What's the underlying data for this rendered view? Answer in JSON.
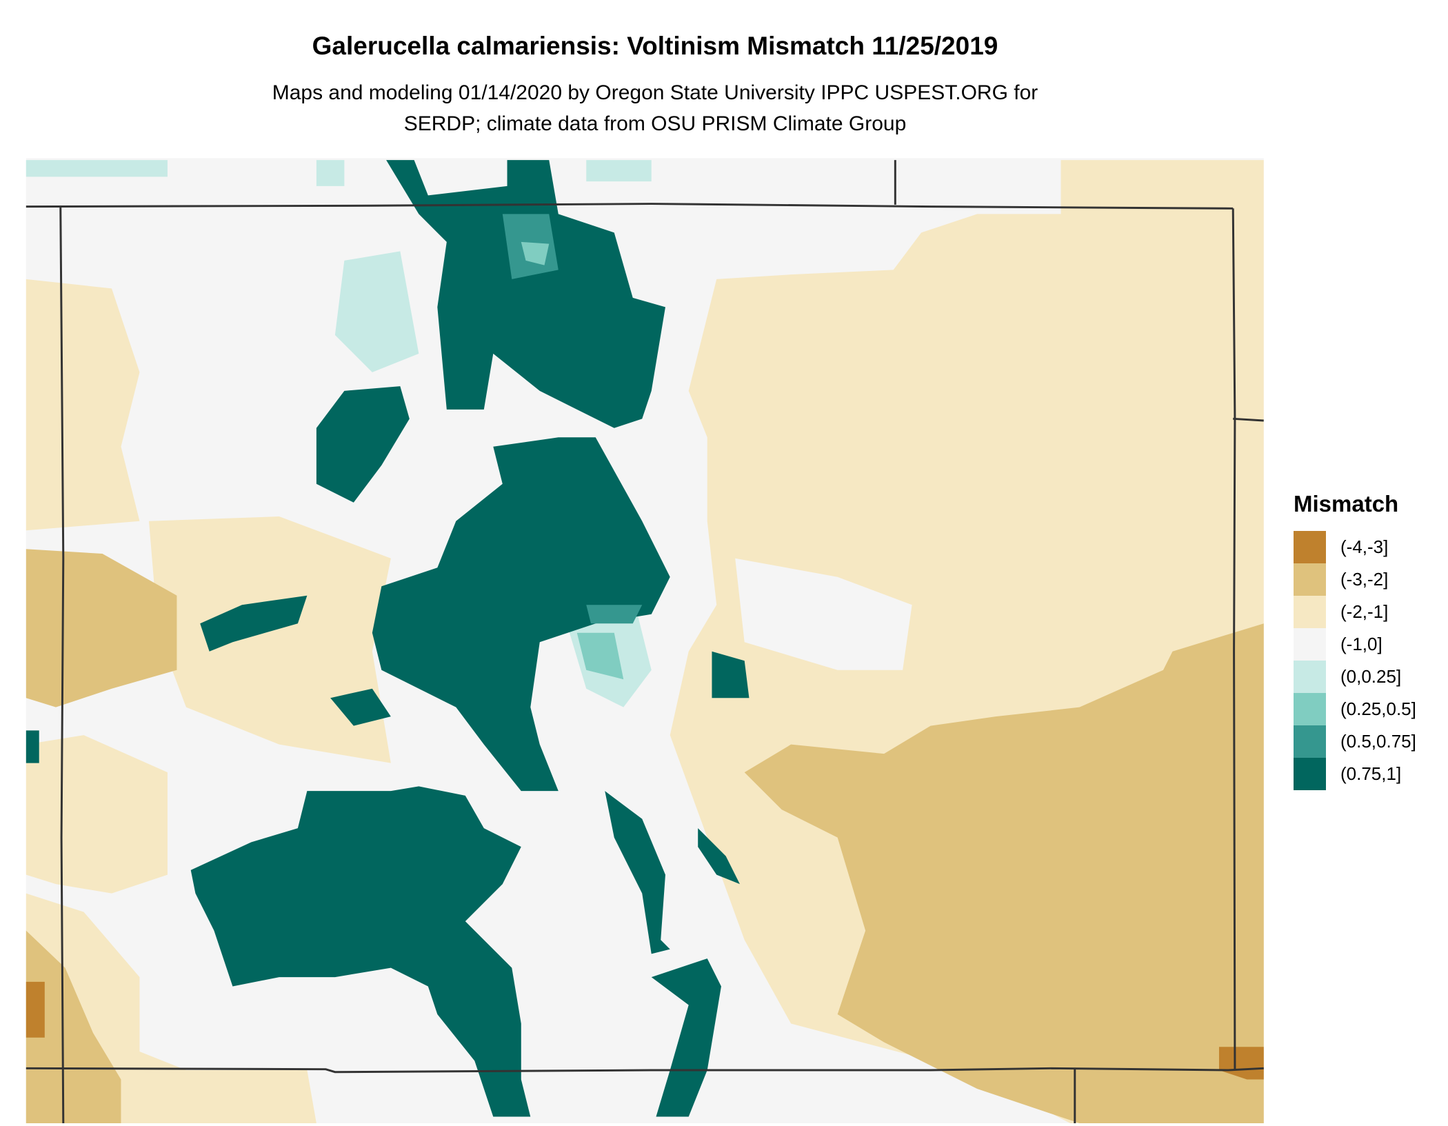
{
  "title": "Galerucella calmariensis: Voltinism Mismatch 11/25/2019",
  "subtitle_line1": "Maps and modeling 01/14/2020 by Oregon State University IPPC USPEST.ORG for",
  "subtitle_line2": "SERDP; climate data from OSU PRISM Climate Group",
  "legend": {
    "title": "Mismatch",
    "items": [
      {
        "label": "(-4,-3]",
        "color": "#bf812d"
      },
      {
        "label": "(-3,-2]",
        "color": "#dfc27d"
      },
      {
        "label": "(-2,-1]",
        "color": "#f6e8c3"
      },
      {
        "label": "(-1,0]",
        "color": "#f5f5f5"
      },
      {
        "label": "(0,0.25]",
        "color": "#c7eae5"
      },
      {
        "label": "(0.25,0.5]",
        "color": "#80cdc1"
      },
      {
        "label": "(0.5,0.75]",
        "color": "#35978f"
      },
      {
        "label": "(0.75,1]",
        "color": "#01665e"
      }
    ]
  },
  "border_color": "#333333"
}
